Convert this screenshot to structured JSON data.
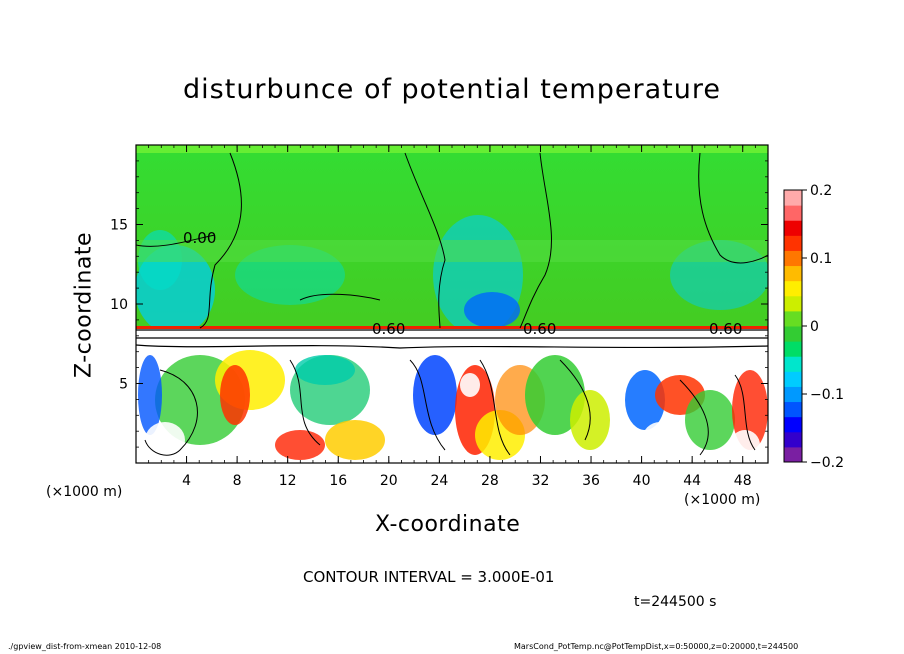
{
  "chart_data": {
    "type": "heatmap",
    "title": "disturbunce of potential temperature",
    "xlabel": "X-coordinate",
    "ylabel": "Z-coordinate",
    "x_unit_label": "(×1000 m)",
    "x_ticks": [
      4,
      8,
      12,
      16,
      20,
      24,
      28,
      32,
      36,
      40,
      44,
      48
    ],
    "y_ticks": [
      5,
      10,
      15
    ],
    "xlim": [
      0,
      50
    ],
    "ylim": [
      0,
      20
    ],
    "colorbar": {
      "ticks": [
        "0.2",
        "0.1",
        "0",
        "−0.1",
        "−0.2"
      ],
      "range": [
        -0.2,
        0.2
      ],
      "colors": [
        "#7a1fa2",
        "#3300cc",
        "#0000ff",
        "#0055ff",
        "#0099ff",
        "#00ccff",
        "#00e6cc",
        "#00dd66",
        "#33cc33",
        "#66dd22",
        "#ccee00",
        "#ffee00",
        "#ffbb00",
        "#ff7700",
        "#ff3300",
        "#ee0000",
        "#ff6666",
        "#ffaaaa"
      ]
    },
    "contour_labels": [
      "0.00",
      "0.60",
      "0.60",
      "0.60"
    ],
    "contour_interval": "CONTOUR INTERVAL = 3.000E-01",
    "time": "t=244500 s"
  },
  "footer": {
    "left": "./gpview_dist-from-xmean  2010-12-08",
    "right": "MarsCond_PotTemp.nc@PotTempDist,x=0:50000,z=0:20000,t=244500"
  }
}
